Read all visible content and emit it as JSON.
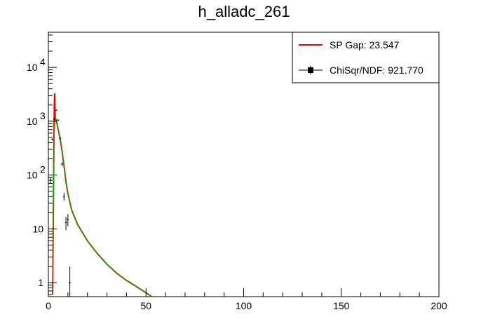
{
  "chart_data": {
    "type": "line",
    "title": "h_alladc_261",
    "xlabel": "",
    "ylabel": "",
    "xlim": [
      0,
      200
    ],
    "ylim": [
      0.55,
      45000
    ],
    "y_scale": "log",
    "grid": false,
    "legend_position": "top-right",
    "x_tick_labels": [
      "0",
      "50",
      "100",
      "150",
      "200"
    ],
    "x_ticks": [
      0,
      50,
      100,
      150,
      200
    ],
    "y_tick_labels": [
      {
        "value": 1,
        "base": "1",
        "exp": ""
      },
      {
        "value": 10,
        "base": "10",
        "exp": ""
      },
      {
        "value": 100,
        "base": "10",
        "exp": "2"
      },
      {
        "value": 1000,
        "base": "10",
        "exp": "3"
      },
      {
        "value": 10000,
        "base": "10",
        "exp": "4"
      }
    ],
    "legend": [
      {
        "label": "SP Gap: 23.547",
        "marker": "line",
        "color": "#ff0000"
      },
      {
        "label": "ChiSqr/NDF: 921.770",
        "marker": "square-with-errorbar",
        "color": "#000000"
      }
    ],
    "series": [
      {
        "role": "fit",
        "color": "#ff0000",
        "x": [
          2.2,
          2.6,
          3.0,
          3.2,
          3.5,
          3.8,
          4.2,
          5,
          6,
          7,
          8,
          9,
          10,
          12,
          15,
          20,
          25,
          30,
          35,
          40,
          45,
          50,
          53
        ],
        "y": [
          0.6,
          40,
          1800,
          3300,
          1200,
          1100,
          1000,
          700,
          480,
          280,
          150,
          75,
          45,
          22,
          12,
          6,
          3.5,
          2.2,
          1.5,
          1.1,
          0.85,
          0.65,
          0.55
        ]
      },
      {
        "role": "component",
        "color": "#00aa00",
        "x": [
          2.2,
          2.6,
          3.0,
          3.4,
          3.8,
          4.2,
          5,
          6,
          7,
          8,
          9,
          10,
          12,
          15,
          20,
          25,
          30,
          35,
          40,
          45,
          50,
          53
        ],
        "y": [
          0.6,
          30,
          600,
          1050,
          1150,
          1050,
          700,
          480,
          280,
          150,
          75,
          45,
          22,
          12,
          6,
          3.5,
          2.2,
          1.5,
          1.1,
          0.85,
          0.65,
          0.55
        ]
      },
      {
        "role": "data",
        "color": "#000000",
        "x": [
          1,
          2,
          3,
          4,
          5,
          6,
          7,
          8,
          9,
          10,
          11
        ],
        "y": [
          80,
          460,
          1100,
          1600,
          1050,
          480,
          160,
          40,
          13,
          15,
          1
        ]
      }
    ]
  }
}
